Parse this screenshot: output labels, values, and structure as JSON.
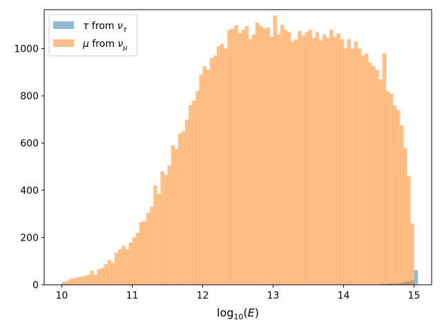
{
  "chart_data": {
    "type": "bar",
    "title": "",
    "xlabel": "log10(E)",
    "ylabel": "",
    "xlim": [
      9.75,
      15.25
    ],
    "ylim": [
      0,
      1165
    ],
    "bin_start": 10.0,
    "bin_width": 0.05,
    "grid": false,
    "legend_placement": "top-left",
    "x_ticks": [
      "10",
      "11",
      "12",
      "13",
      "14",
      "15"
    ],
    "y_ticks": [
      "0",
      "200",
      "400",
      "600",
      "800",
      "1000"
    ],
    "series": [
      {
        "name": "τ from ν_τ",
        "color": "#1f77b4",
        "alpha": 0.5,
        "values": [
          0,
          0,
          0,
          0,
          0,
          0,
          0,
          0,
          0,
          0,
          0,
          0,
          0,
          0,
          0,
          0,
          0,
          0,
          0,
          0,
          0,
          0,
          0,
          0,
          0,
          0,
          0,
          0,
          0,
          0,
          0,
          0,
          0,
          0,
          0,
          0,
          0,
          0,
          0,
          0,
          0,
          0,
          0,
          0,
          0,
          0,
          0,
          0,
          0,
          0,
          0,
          0,
          0,
          0,
          0,
          0,
          0,
          0,
          0,
          0,
          0,
          0,
          0,
          0,
          0,
          0,
          0,
          0,
          0,
          0,
          0,
          0,
          0,
          0,
          0,
          0,
          0,
          0,
          0,
          0,
          0,
          0,
          0,
          0,
          0,
          0,
          0,
          0,
          0,
          1,
          2,
          3,
          4,
          6,
          5,
          7,
          9,
          12,
          16,
          20,
          62
        ]
      },
      {
        "name": "μ from ν_μ",
        "color": "#ff7f0e",
        "alpha": 0.5,
        "values": [
          12,
          16,
          25,
          28,
          32,
          35,
          37,
          42,
          60,
          42,
          65,
          72,
          87,
          105,
          93,
          135,
          150,
          165,
          150,
          178,
          200,
          220,
          265,
          270,
          305,
          330,
          420,
          385,
          480,
          465,
          505,
          590,
          575,
          640,
          650,
          700,
          760,
          780,
          820,
          890,
          925,
          910,
          960,
          970,
          1010,
          1020,
          1000,
          1080,
          1085,
          1100,
          1065,
          1080,
          1095,
          1040,
          1060,
          1110,
          1095,
          1085,
          1090,
          1050,
          1140,
          1060,
          1100,
          1080,
          1070,
          1030,
          1040,
          1075,
          1055,
          1070,
          1080,
          1045,
          1070,
          1035,
          1060,
          1045,
          1080,
          1050,
          1065,
          1040,
          1000,
          1040,
          1000,
          1030,
          1000,
          970,
          980,
          940,
          925,
          910,
          870,
          980,
          820,
          810,
          760,
          740,
          675,
          580,
          460,
          260
        ]
      }
    ]
  }
}
